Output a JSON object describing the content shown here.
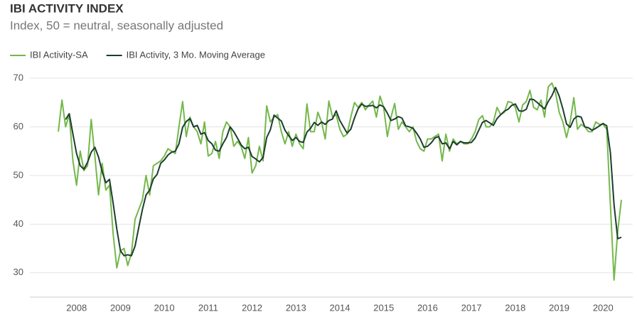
{
  "chart_data": {
    "type": "line",
    "title": "IBI ACTIVITY INDEX",
    "subtitle": "Index, 50 = neutral, seasonally adjusted",
    "categories": [
      null,
      null,
      null,
      null,
      null,
      "2008",
      null,
      null,
      null,
      null,
      null,
      null,
      null,
      null,
      null,
      null,
      null,
      "2009",
      null,
      null,
      null,
      null,
      null,
      null,
      null,
      null,
      null,
      null,
      null,
      "2010",
      null,
      null,
      null,
      null,
      null,
      null,
      null,
      null,
      null,
      null,
      null,
      "2011",
      null,
      null,
      null,
      null,
      null,
      null,
      null,
      null,
      null,
      null,
      null,
      "2012",
      null,
      null,
      null,
      null,
      null,
      null,
      null,
      null,
      null,
      null,
      null,
      "2013",
      null,
      null,
      null,
      null,
      null,
      null,
      null,
      null,
      null,
      null,
      null,
      "2014",
      null,
      null,
      null,
      null,
      null,
      null,
      null,
      null,
      null,
      null,
      null,
      "2015",
      null,
      null,
      null,
      null,
      null,
      null,
      null,
      null,
      null,
      null,
      null,
      "2016",
      null,
      null,
      null,
      null,
      null,
      null,
      null,
      null,
      null,
      null,
      null,
      "2017",
      null,
      null,
      null,
      null,
      null,
      null,
      null,
      null,
      null,
      null,
      null,
      "2018",
      null,
      null,
      null,
      null,
      null,
      null,
      null,
      null,
      null,
      null,
      null,
      "2019",
      null,
      null,
      null,
      null,
      null,
      null,
      null,
      null,
      null,
      null,
      null,
      "2020",
      null,
      null,
      null,
      null,
      null
    ],
    "series": [
      {
        "name": "IBI Activity-SA",
        "color": "#74b84b",
        "values": [
          59,
          65.5,
          60,
          62.5,
          53,
          48,
          55,
          51,
          52,
          61.5,
          54,
          46,
          52.5,
          47,
          48,
          38,
          31,
          34.5,
          35,
          31.5,
          34,
          41,
          43,
          45,
          50,
          46,
          52,
          52.5,
          53,
          54,
          55.5,
          55,
          54.5,
          60,
          65.2,
          58,
          62,
          60,
          59,
          56.5,
          61,
          54,
          54.5,
          57,
          53.5,
          59,
          61,
          60,
          56,
          57,
          56,
          53.5,
          57.8,
          50.5,
          52,
          56,
          53,
          64.3,
          61,
          62,
          62.5,
          59,
          56.5,
          59,
          56,
          58.5,
          56.5,
          55.5,
          64.7,
          59,
          59,
          63,
          61,
          57.5,
          65.3,
          62,
          62.5,
          59.5,
          58,
          58.5,
          62,
          65,
          64,
          65,
          63.5,
          64.5,
          65.3,
          62,
          66.3,
          64,
          58,
          62,
          64.8,
          59.5,
          61,
          60,
          59,
          60,
          57,
          55.5,
          55,
          57.5,
          57.5,
          58,
          58.5,
          53,
          58.5,
          55,
          57.5,
          56.5,
          57,
          56.5,
          56.5,
          57.5,
          59,
          61.5,
          62.3,
          60,
          60,
          61,
          64,
          62.5,
          63,
          65.2,
          65,
          64,
          61,
          64.5,
          65.2,
          67.5,
          64,
          63.5,
          65.5,
          62,
          68.2,
          69,
          67,
          63,
          61,
          57.8,
          61,
          66,
          59.5,
          60.5,
          60,
          59,
          59,
          61,
          60.5,
          60.5,
          59.5,
          44,
          28.5,
          38.5,
          45
        ]
      },
      {
        "name": "IBI Activity, 3 Mo. Moving Average",
        "color": "#1c3d2e",
        "values": [
          null,
          null,
          61.5,
          62.7,
          58.5,
          54.5,
          52,
          51.3,
          52.7,
          54.8,
          55.8,
          53.8,
          50.8,
          48.5,
          49.2,
          44.3,
          39,
          34.5,
          33.5,
          33.7,
          33.5,
          35.5,
          39.3,
          43,
          46,
          47,
          49.3,
          50.2,
          52.5,
          53.2,
          54.2,
          54.8,
          55,
          56.5,
          59.9,
          61.1,
          61.7,
          60,
          60.3,
          58.5,
          58.8,
          57.2,
          56.5,
          55.2,
          55,
          56.5,
          57.8,
          60,
          59,
          57.7,
          56.3,
          55.5,
          55.8,
          53.9,
          53.4,
          52.8,
          53.7,
          57.8,
          59.4,
          62.4,
          61.8,
          61.2,
          59.3,
          58.2,
          57.2,
          57.8,
          57,
          56.8,
          58.9,
          59.7,
          60.9,
          60.3,
          61,
          60.5,
          61.3,
          61.6,
          63.3,
          61.3,
          60,
          58.7,
          59.5,
          61.8,
          63.7,
          64.7,
          64.2,
          64.3,
          64.4,
          63.9,
          64.5,
          64.1,
          62.8,
          61.3,
          61.6,
          62.1,
          61.8,
          60.2,
          60,
          59.7,
          58.7,
          57.5,
          55.8,
          56,
          56.7,
          57.7,
          58,
          56.5,
          56.7,
          55.5,
          57,
          56.3,
          57,
          56.7,
          56.7,
          56.8,
          57.7,
          59.3,
          60.9,
          61.3,
          60.8,
          60.3,
          61.7,
          62.5,
          63.2,
          63.6,
          64.4,
          64.7,
          63.3,
          63.2,
          63.6,
          65.7,
          65.6,
          65,
          64.3,
          63.7,
          65.2,
          66.4,
          68.1,
          66.3,
          63.7,
          60.6,
          59.9,
          61.6,
          62.2,
          62,
          60,
          59.8,
          59.3,
          59.7,
          60.2,
          60.7,
          60.2,
          54.7,
          44,
          37,
          37.3
        ]
      }
    ],
    "ylim": [
      25,
      70
    ],
    "yticks": [
      30,
      40,
      50,
      60,
      70
    ],
    "grid": true,
    "legend": "top-left"
  }
}
